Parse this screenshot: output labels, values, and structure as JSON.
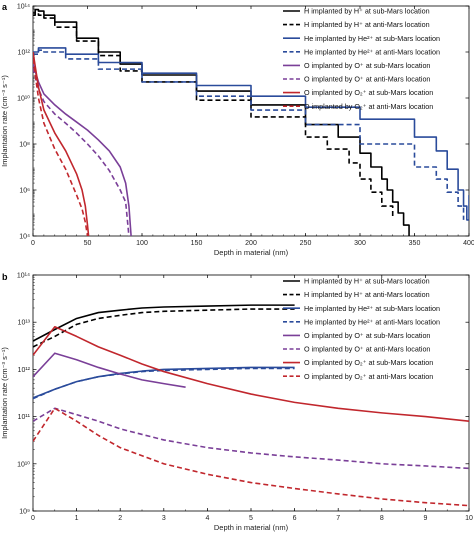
{
  "chart_data": [
    {
      "type": "line",
      "panel_label": "a",
      "xlabel": "Depth in material (nm)",
      "ylabel": "Implantation rate (cm⁻³ s⁻¹)",
      "xlim": [
        0,
        400
      ],
      "ylim": [
        10000,
        100000000000000
      ],
      "yscale": "log",
      "xticks": [
        0,
        50,
        100,
        150,
        200,
        250,
        300,
        350,
        400
      ],
      "yticks": [
        {
          "value": 10000,
          "label": "10⁴"
        },
        {
          "value": 1000000,
          "label": "10⁶"
        },
        {
          "value": 100000000,
          "label": "10⁸"
        },
        {
          "value": 10000000000,
          "label": "10¹⁰"
        },
        {
          "value": 1000000000000,
          "label": "10¹²"
        },
        {
          "value": 100000000000000,
          "label": "10¹⁴"
        }
      ],
      "legend_position": "top-right",
      "series": [
        {
          "name": "H implanted by H⁺ at sub-Mars location",
          "color": "#000000",
          "dash": "solid",
          "step": true,
          "x": [
            0,
            2,
            5,
            10,
            20,
            40,
            60,
            80,
            100,
            150,
            200,
            250,
            280,
            300,
            310,
            320,
            325,
            330,
            335,
            340,
            345
          ],
          "y": [
            50000000000000,
            70000000000000,
            60000000000000,
            40000000000000,
            20000000000000,
            4000000000000,
            1000000000000,
            300000000000,
            100000000000,
            20000000000,
            5000000000,
            700000000,
            200000000,
            40000000,
            10000000,
            3000000,
            1000000,
            300000,
            100000,
            30000,
            10000
          ]
        },
        {
          "name": "H implanted by H⁺ at anti-Mars location",
          "color": "#000000",
          "dash": "dashed",
          "step": true,
          "x": [
            0,
            2,
            5,
            10,
            20,
            40,
            60,
            80,
            100,
            150,
            200,
            250,
            270,
            290,
            300,
            310,
            320,
            330
          ],
          "y": [
            40000000000000,
            50000000000000,
            40000000000000,
            30000000000000,
            12000000000000,
            3000000000000,
            700000000000,
            150000000000,
            50000000000,
            8000000000,
            1500000000,
            200000000,
            60000000,
            15000000,
            3000000,
            800000,
            200000,
            60000
          ]
        },
        {
          "name": "He implanted by He²⁺ at sub-Mars location",
          "color": "#2a4b9b",
          "dash": "solid",
          "step": true,
          "x": [
            0,
            5,
            10,
            30,
            60,
            100,
            150,
            200,
            250,
            300,
            350,
            370,
            380,
            390,
            395,
            398,
            400
          ],
          "y": [
            1000000000000,
            1500000000000,
            1500000000000,
            800000000000,
            350000000000,
            120000000000,
            35000000000,
            12000000000,
            4000000000,
            1200000000,
            200000000,
            50000000,
            8000000,
            1000000,
            200000,
            50000,
            600000
          ]
        },
        {
          "name": "He implanted by He²⁺ at anti-Mars location",
          "color": "#2a4b9b",
          "dash": "dashed",
          "step": true,
          "x": [
            0,
            5,
            10,
            30,
            60,
            100,
            150,
            200,
            250,
            300,
            350,
            370,
            380,
            390,
            395
          ],
          "y": [
            800000000000,
            1200000000000,
            1000000000000,
            500000000000,
            180000000000,
            50000000000,
            12000000000,
            3000000000,
            700000000,
            100000000,
            10000000,
            3000000,
            800000,
            200000,
            50000
          ]
        },
        {
          "name": "O implanted by O⁺ at sub-Mars location",
          "color": "#7a3f98",
          "dash": "solid",
          "step": false,
          "x": [
            0,
            5,
            10,
            20,
            30,
            40,
            50,
            60,
            70,
            80,
            85,
            88,
            90
          ],
          "y": [
            300000000000,
            50000000000,
            15000000000,
            5000000000,
            2000000000,
            900000000,
            400000000,
            150000000,
            50000000,
            10000000,
            2000000,
            200000,
            10000
          ]
        },
        {
          "name": "O implanted by O⁺ at anti-Mars location",
          "color": "#7a3f98",
          "dash": "dashed",
          "step": false,
          "x": [
            0,
            5,
            10,
            20,
            30,
            40,
            50,
            60,
            70,
            80,
            85,
            88
          ],
          "y": [
            200000000000,
            25000000000,
            7000000000,
            2000000000,
            800000000,
            300000000,
            100000000,
            30000000,
            7000000,
            1000000,
            300000,
            10000
          ]
        },
        {
          "name": "O implanted by O₂⁺ at sub-Mars location",
          "color": "#c1272d",
          "dash": "solid",
          "step": false,
          "x": [
            0,
            5,
            10,
            20,
            30,
            40,
            45,
            48,
            50,
            51
          ],
          "y": [
            1000000000000,
            30000000000,
            3000000000,
            300000000,
            50000000,
            5000000,
            1000000,
            200000,
            30000,
            10000
          ]
        },
        {
          "name": "O implanted by O₂⁺ at anti-Mars location",
          "color": "#c1272d",
          "dash": "dashed",
          "step": false,
          "x": [
            0,
            5,
            10,
            20,
            30,
            40,
            45,
            48,
            50
          ],
          "y": [
            500000000000,
            10000000000,
            800000000,
            60000000,
            8000000,
            600000,
            150000,
            40000,
            10000
          ]
        }
      ]
    },
    {
      "type": "line",
      "panel_label": "b",
      "xlabel": "Depth in material (nm)",
      "ylabel": "Implantation rate (cm⁻³ s⁻¹)",
      "xlim": [
        0,
        10
      ],
      "ylim": [
        1000000000,
        100000000000000
      ],
      "yscale": "log",
      "xticks": [
        0,
        1,
        2,
        3,
        4,
        5,
        6,
        7,
        8,
        9,
        10
      ],
      "yticks": [
        {
          "value": 1000000000,
          "label": "10⁹"
        },
        {
          "value": 10000000000,
          "label": "10¹⁰"
        },
        {
          "value": 100000000000,
          "label": "10¹¹"
        },
        {
          "value": 1000000000000,
          "label": "10¹²"
        },
        {
          "value": 10000000000000,
          "label": "10¹³"
        },
        {
          "value": 100000000000000,
          "label": "10¹⁴"
        }
      ],
      "legend_position": "top-right",
      "series": [
        {
          "name": "H implanted by H⁺ at sub-Mars location",
          "color": "#000000",
          "dash": "solid",
          "step": false,
          "x": [
            0,
            0.5,
            1,
            1.5,
            2,
            2.5,
            3,
            4,
            5,
            6
          ],
          "y": [
            4000000000000,
            7000000000000,
            12000000000000,
            16000000000000,
            18000000000000,
            20000000000000,
            21000000000000,
            22000000000000,
            23000000000000,
            23000000000000
          ]
        },
        {
          "name": "H implanted by H⁺ at anti-Mars location",
          "color": "#000000",
          "dash": "dashed",
          "step": false,
          "x": [
            0,
            0.5,
            1,
            1.5,
            2,
            2.5,
            3,
            4,
            5,
            6
          ],
          "y": [
            3000000000000,
            5000000000000,
            9000000000000,
            12000000000000,
            14000000000000,
            16000000000000,
            17000000000000,
            18000000000000,
            19000000000000,
            19000000000000
          ]
        },
        {
          "name": "He implanted by He²⁺ at sub-Mars location",
          "color": "#2a4b9b",
          "dash": "solid",
          "step": false,
          "x": [
            0,
            0.5,
            1,
            1.5,
            2,
            2.5,
            3,
            4,
            5,
            6
          ],
          "y": [
            250000000000,
            380000000000,
            550000000000,
            700000000000,
            820000000000,
            920000000000,
            1000000000000,
            1050000000000,
            1100000000000,
            1100000000000
          ]
        },
        {
          "name": "He implanted by He²⁺ at anti-Mars location",
          "color": "#2a4b9b",
          "dash": "dashed",
          "step": false,
          "x": [
            0,
            0.5,
            1,
            1.5,
            2,
            2.5,
            3,
            4,
            5,
            6
          ],
          "y": [
            240000000000,
            380000000000,
            550000000000,
            700000000000,
            800000000000,
            900000000000,
            950000000000,
            1000000000000,
            1050000000000,
            1050000000000
          ]
        },
        {
          "name": "O implanted by O⁺ at sub-Mars location",
          "color": "#7a3f98",
          "dash": "solid",
          "step": false,
          "x": [
            0,
            0.5,
            1,
            1.5,
            2,
            2.5,
            3,
            3.5
          ],
          "y": [
            700000000000,
            2200000000000,
            1600000000000,
            1100000000000,
            800000000000,
            600000000000,
            500000000000,
            420000000000
          ]
        },
        {
          "name": "O implanted by O⁺ at anti-Mars location",
          "color": "#7a3f98",
          "dash": "dashed",
          "step": false,
          "x": [
            0,
            0.5,
            1,
            1.5,
            2,
            3,
            4,
            5,
            6,
            7,
            8,
            9,
            10
          ],
          "y": [
            80000000000,
            150000000000,
            110000000000,
            80000000000,
            55000000000,
            32000000000,
            22000000000,
            17000000000,
            14000000000,
            12000000000,
            10000000000,
            9000000000,
            8000000000
          ]
        },
        {
          "name": "O implanted by O₂⁺ at sub-Mars location",
          "color": "#c1272d",
          "dash": "solid",
          "step": false,
          "x": [
            0,
            0.5,
            1,
            1.5,
            2,
            2.5,
            3,
            4,
            5,
            6,
            7,
            8,
            9,
            10
          ],
          "y": [
            2000000000000,
            8000000000000,
            5000000000000,
            3000000000000,
            2000000000000,
            1300000000000,
            900000000000,
            500000000000,
            300000000000,
            200000000000,
            150000000000,
            120000000000,
            100000000000,
            80000000000
          ]
        },
        {
          "name": "O implanted by O₂⁺ at anti-Mars location",
          "color": "#c1272d",
          "dash": "dashed",
          "step": false,
          "x": [
            0,
            0.5,
            1,
            1.5,
            2,
            3,
            4,
            5,
            6,
            7,
            8,
            9,
            10
          ],
          "y": [
            30000000000,
            150000000000,
            80000000000,
            40000000000,
            22000000000,
            10000000000,
            6000000000,
            4000000000,
            3000000000,
            2300000000,
            1800000000,
            1500000000,
            1300000000
          ]
        }
      ]
    }
  ]
}
